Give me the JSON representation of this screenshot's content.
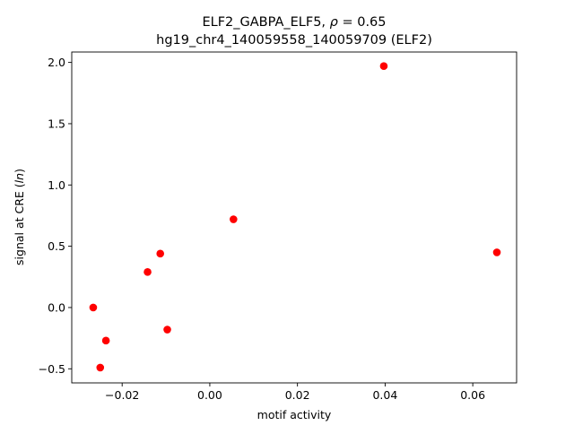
{
  "chart_data": {
    "type": "scatter",
    "title_main": "ELF2_GABPA_ELF5, ",
    "title_rho": "ρ",
    "title_value": " = 0.65",
    "subtitle": "hg19_chr4_140059558_140059709 (ELF2)",
    "xlabel": "motif activity",
    "ylabel_prefix": "signal at CRE (",
    "ylabel_italic": "ln",
    "ylabel_suffix": ")",
    "xlim": [
      -0.0315,
      0.07
    ],
    "ylim": [
      -0.615,
      2.085
    ],
    "xticks": [
      {
        "value": -0.02,
        "label": "−0.02"
      },
      {
        "value": 0.0,
        "label": "0.00"
      },
      {
        "value": 0.02,
        "label": "0.02"
      },
      {
        "value": 0.04,
        "label": "0.04"
      },
      {
        "value": 0.06,
        "label": "0.06"
      }
    ],
    "yticks": [
      {
        "value": -0.5,
        "label": "−0.5"
      },
      {
        "value": 0.0,
        "label": "0.0"
      },
      {
        "value": 0.5,
        "label": "0.5"
      },
      {
        "value": 1.0,
        "label": "1.0"
      },
      {
        "value": 1.5,
        "label": "1.5"
      },
      {
        "value": 2.0,
        "label": "2.0"
      }
    ],
    "grid": false,
    "marker_color": "#ff0000",
    "points": [
      {
        "x": -0.0266,
        "y": 0.0
      },
      {
        "x": -0.025,
        "y": -0.49
      },
      {
        "x": -0.0237,
        "y": -0.27
      },
      {
        "x": -0.0142,
        "y": 0.29
      },
      {
        "x": -0.0113,
        "y": 0.44
      },
      {
        "x": -0.0097,
        "y": -0.18
      },
      {
        "x": 0.0054,
        "y": 0.72
      },
      {
        "x": 0.0397,
        "y": 1.97
      },
      {
        "x": 0.0655,
        "y": 0.45
      }
    ]
  }
}
